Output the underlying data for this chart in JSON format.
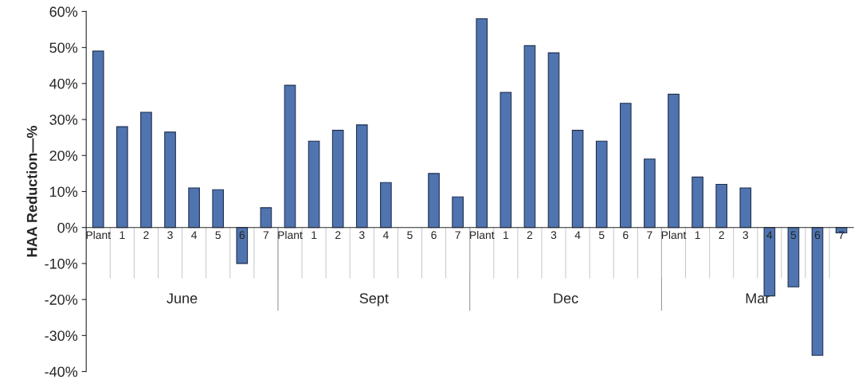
{
  "chart_data": {
    "type": "bar",
    "ylabel": "HAA Reduction—%",
    "categories": [
      "Plant",
      "1",
      "2",
      "3",
      "4",
      "5",
      "6",
      "7",
      "Plant",
      "1",
      "2",
      "3",
      "4",
      "5",
      "6",
      "7",
      "Plant",
      "1",
      "2",
      "3",
      "4",
      "5",
      "6",
      "7",
      "Plant",
      "1",
      "2",
      "3",
      "4",
      "5",
      "6",
      "7"
    ],
    "values": [
      49,
      28,
      32,
      26.5,
      11,
      10.5,
      -10,
      5.5,
      39.5,
      24,
      27,
      28.5,
      12.5,
      null,
      15,
      8.5,
      58,
      37.5,
      50.5,
      48.5,
      27,
      24,
      34.5,
      19,
      37,
      14,
      12,
      11,
      -19,
      -16.5,
      -35.5,
      -1.5
    ],
    "color": "#4f74b0",
    "annotations": [
      "June",
      "Sept",
      "Dec",
      "Mar"
    ],
    "ylim": [
      -40,
      60
    ],
    "yticks": [
      {
        "value": -40,
        "label": "-40%"
      },
      {
        "value": -30,
        "label": "-30%"
      },
      {
        "value": -20,
        "label": "-20%"
      },
      {
        "value": -10,
        "label": "-10%"
      },
      {
        "value": 0,
        "label": "0%"
      },
      {
        "value": 10,
        "label": "10%"
      },
      {
        "value": 20,
        "label": "20%"
      },
      {
        "value": 30,
        "label": "30%"
      },
      {
        "value": 40,
        "label": "40%"
      },
      {
        "value": 50,
        "label": "50%"
      },
      {
        "value": 60,
        "label": "60%"
      }
    ],
    "grid": false,
    "legend": false
  }
}
